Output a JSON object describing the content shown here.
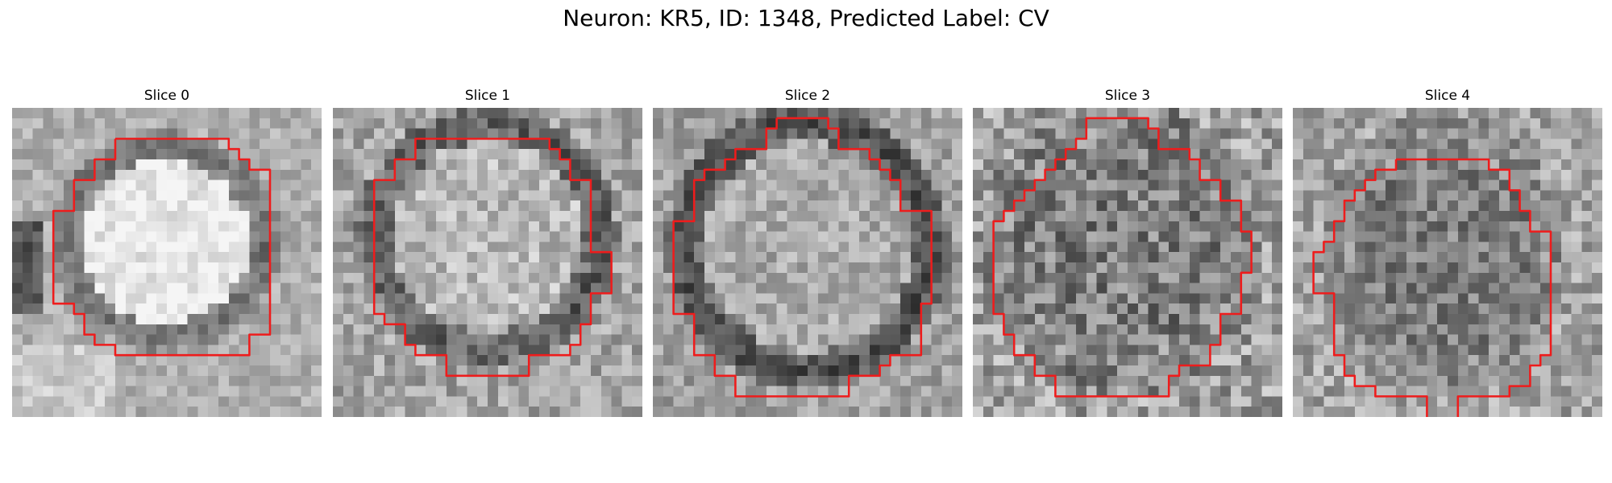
{
  "figure": {
    "title": "Neuron: KR5, ID: 1348, Predicted Label: CV"
  },
  "panels": [
    {
      "title": "Slice 0"
    },
    {
      "title": "Slice 1"
    },
    {
      "title": "Slice 2"
    },
    {
      "title": "Slice 3"
    },
    {
      "title": "Slice 4"
    }
  ],
  "colors": {
    "background": "#ffffff",
    "contour": "#ee1c1c",
    "grayscale_dark": "#1a1a1a",
    "grayscale_light": "#f2f2f2"
  }
}
